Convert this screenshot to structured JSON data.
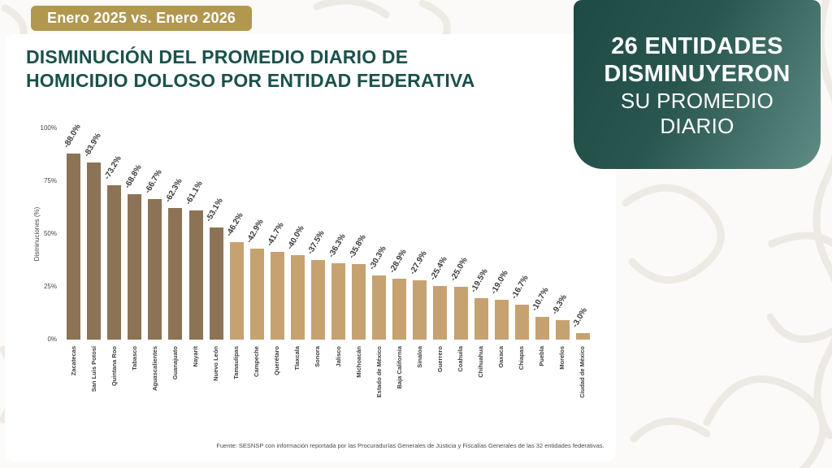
{
  "badge": {
    "label": "Enero 2025 vs. Enero 2026"
  },
  "title": {
    "line1": "DISMINUCIÓN DEL PROMEDIO DIARIO DE",
    "line2": "HOMICIDIO DOLOSO POR ENTIDAD FEDERATIVA"
  },
  "highlight_card": {
    "line1": "26 ENTIDADES",
    "line2": "DISMINUYERON",
    "line3": "SU PROMEDIO",
    "line4": "DIARIO"
  },
  "chart_data": {
    "type": "bar",
    "title": "Disminución del promedio diario de homicidio doloso por entidad federativa",
    "xlabel": "",
    "ylabel": "Disminuciones (%)",
    "ylim": [
      0,
      100
    ],
    "yticks": [
      "100%",
      "75%",
      "50%",
      "25%",
      "0%"
    ],
    "categories": [
      "Zacatecas",
      "San Luis Potosí",
      "Quintana Roo",
      "Tabasco",
      "Aguascalientes",
      "Guanajuato",
      "Nayarit",
      "Nuevo León",
      "Tamaulipas",
      "Campeche",
      "Querétaro",
      "Tlaxcala",
      "Sonora",
      "Jalisco",
      "Michoacán",
      "Estado de México",
      "Baja California",
      "Sinaloa",
      "Guerrero",
      "Coahuila",
      "Chihuahua",
      "Oaxaca",
      "Chiapas",
      "Puebla",
      "Morelos",
      "Ciudad de México"
    ],
    "values": [
      88.0,
      83.9,
      73.2,
      68.8,
      66.7,
      62.3,
      61.1,
      53.1,
      46.2,
      42.9,
      41.7,
      40.0,
      37.5,
      36.3,
      35.8,
      30.3,
      28.9,
      27.9,
      25.4,
      25.0,
      19.5,
      19.0,
      16.7,
      10.7,
      9.3,
      3.0
    ],
    "labels": [
      "-88.0%",
      "-83.9%",
      "-73.2%",
      "-68.8%",
      "-66.7%",
      "-62.3%",
      "-61.1%",
      "-53.1%",
      "-46.2%",
      "-42.9%",
      "-41.7%",
      "-40.0%",
      "-37.5%",
      "-36.3%",
      "-35.8%",
      "-30.3%",
      "-28.9%",
      "-27.9%",
      "-25.4%",
      "-25.0%",
      "-19.5%",
      "-19.0%",
      "-16.7%",
      "-10.7%",
      "-9.3%",
      "-3.0%"
    ],
    "dark_count": 8,
    "colors": {
      "dark": "#8c7355",
      "light": "#c6a271"
    },
    "grid": "off",
    "legend": "none"
  },
  "footer": {
    "source": "Fuente: SESNSP con información reportada por las Procuradurías Generales de Justicia y Fiscalías Generales de las 32 entidades federativas."
  }
}
